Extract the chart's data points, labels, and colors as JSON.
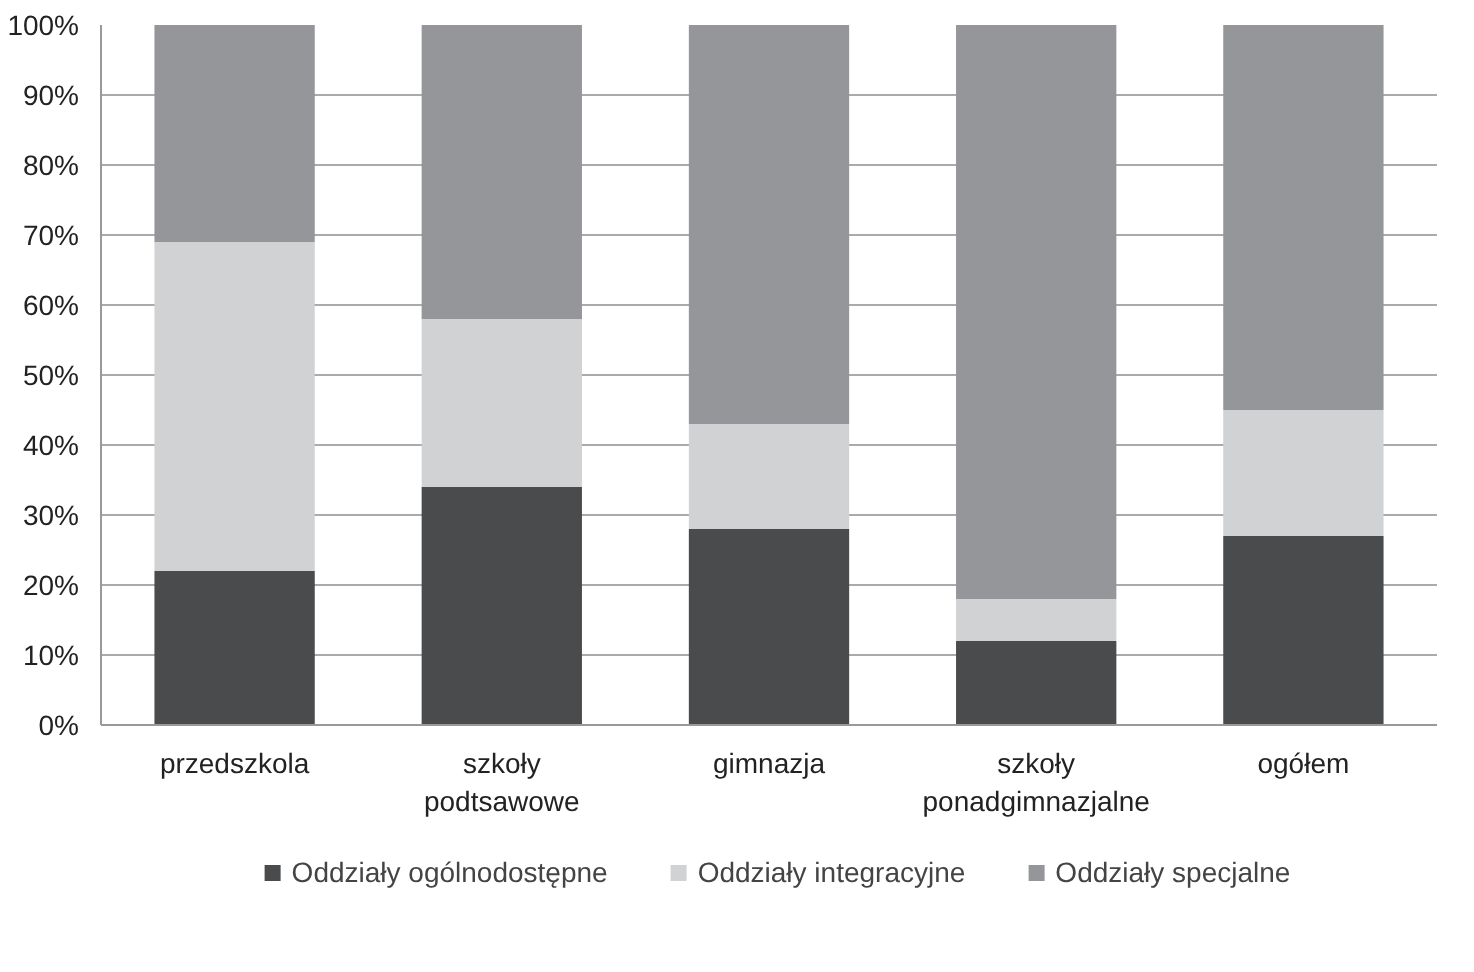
{
  "chart_data": {
    "type": "bar",
    "stacked": true,
    "categories": [
      "przedszkola",
      "szkoły\npodtsawowe",
      "gimnazja",
      "szkoły\nponadgimnazjalne",
      "ogółem"
    ],
    "series": [
      {
        "name": "Oddziały ogólnodostępne",
        "color": "#4a4b4d",
        "values": [
          22,
          34,
          28,
          12,
          27
        ]
      },
      {
        "name": "Oddziały integracyjne",
        "color": "#d1d2d4",
        "values": [
          47,
          24,
          15,
          6,
          18
        ]
      },
      {
        "name": "Oddziały specjalne",
        "color": "#95969a",
        "values": [
          31,
          42,
          57,
          82,
          55
        ]
      }
    ],
    "ylim": [
      0,
      100
    ],
    "yticks": [
      {
        "value": 0,
        "label": "0%"
      },
      {
        "value": 10,
        "label": "10%"
      },
      {
        "value": 20,
        "label": "20%"
      },
      {
        "value": 30,
        "label": "30%"
      },
      {
        "value": 40,
        "label": "40%"
      },
      {
        "value": 50,
        "label": "50%"
      },
      {
        "value": 60,
        "label": "60%"
      },
      {
        "value": 70,
        "label": "70%"
      },
      {
        "value": 80,
        "label": "80%"
      },
      {
        "value": 90,
        "label": "90%"
      },
      {
        "value": 100,
        "label": "100%"
      }
    ],
    "grid": "y",
    "legend": "bottom"
  }
}
